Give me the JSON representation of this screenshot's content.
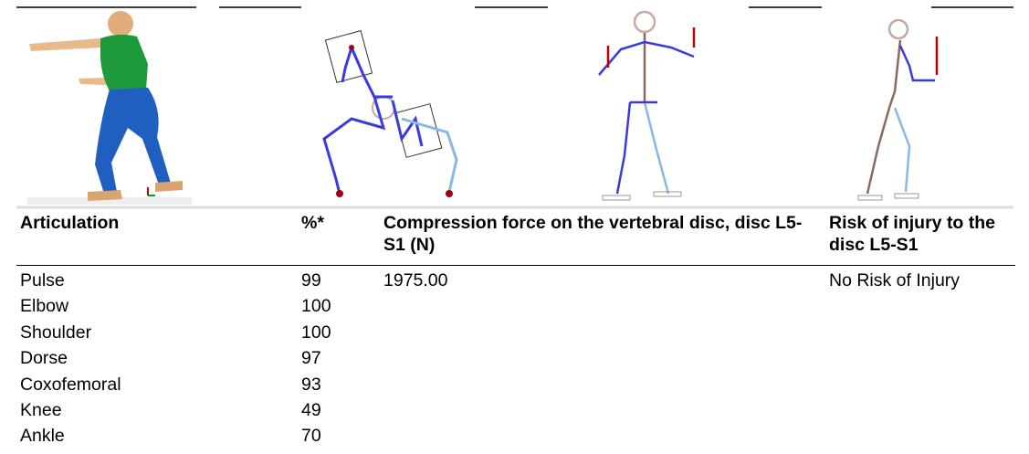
{
  "table": {
    "header": [
      "Articulation",
      "%*",
      "Compression force on the vertebral disc, disc L5-S1 (N)",
      "Risk of injury to the disc L5-S1"
    ],
    "rows": [
      [
        "Pulse",
        99,
        "1975.00",
        "No Risk of Injury"
      ],
      [
        "Elbow",
        100
      ],
      [
        "Shoulder",
        100
      ],
      [
        "Dorse",
        97
      ],
      [
        "Coxofemoral",
        93
      ],
      [
        "Knee",
        49
      ],
      [
        "Ankle",
        70
      ]
    ]
  }
}
